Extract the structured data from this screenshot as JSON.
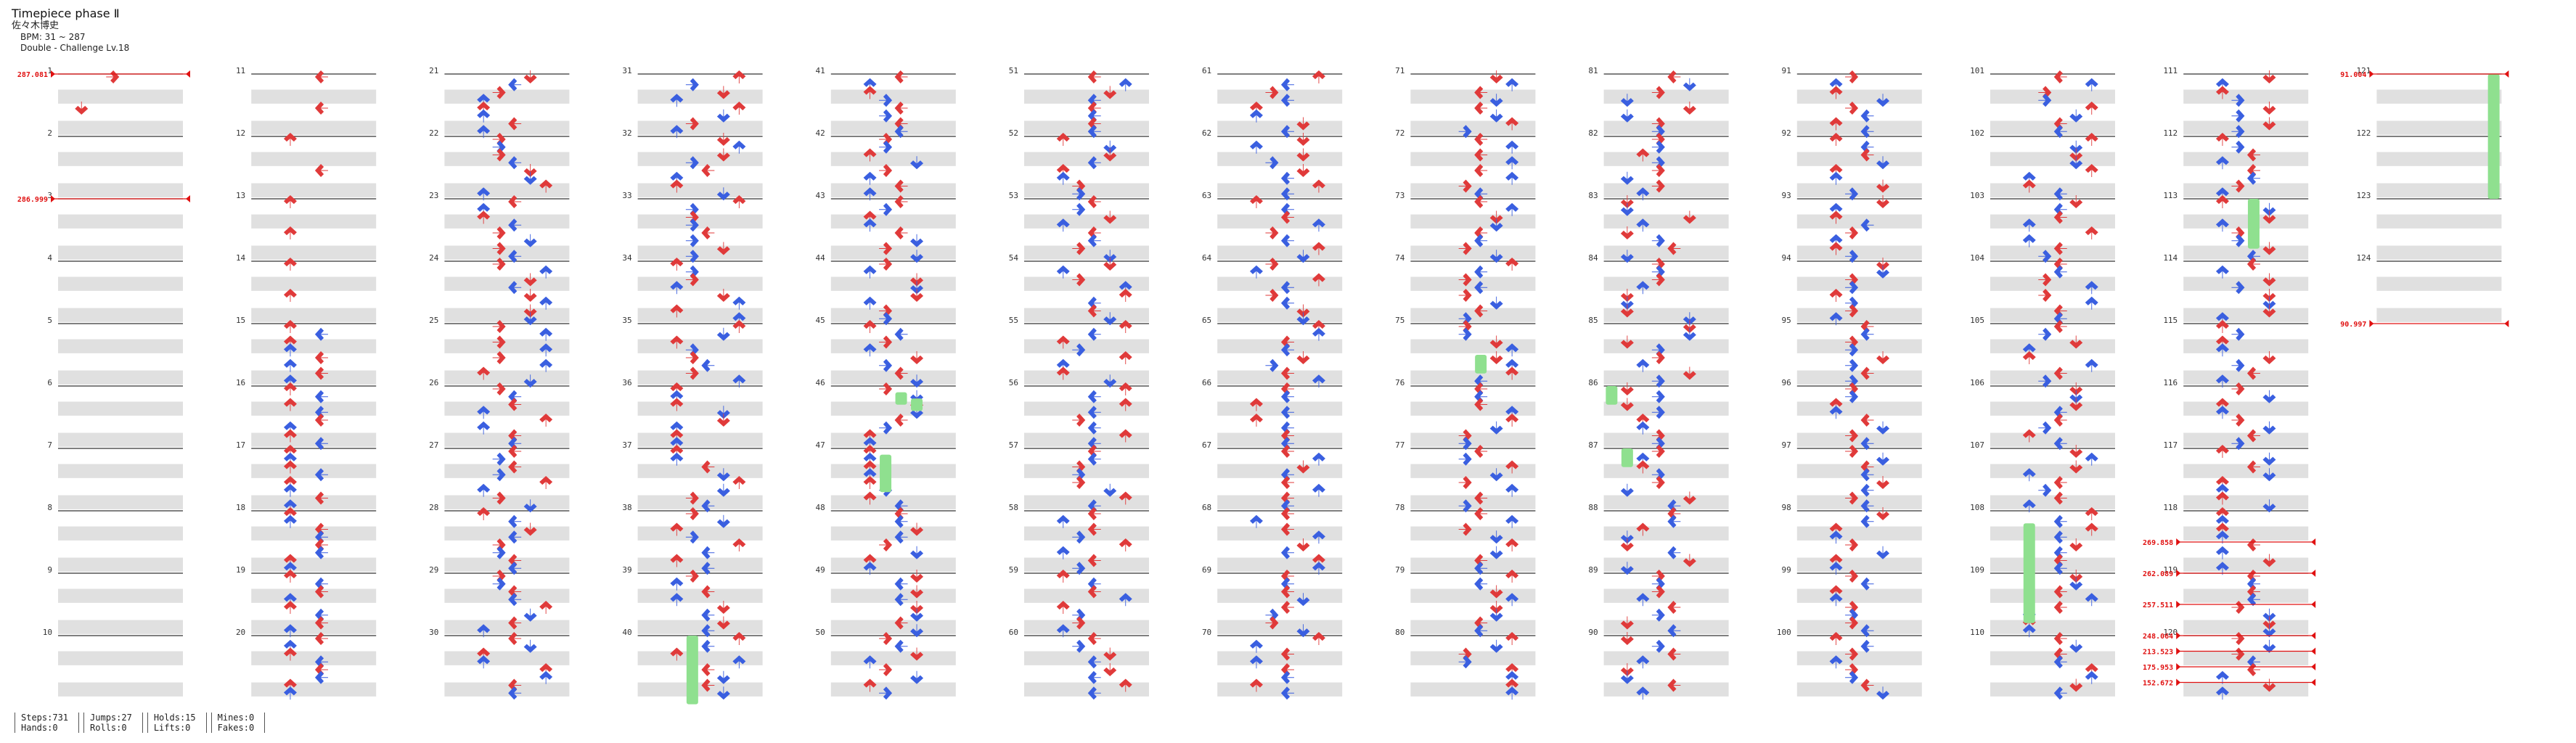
{
  "song": {
    "title": "Timepiece phase Ⅱ",
    "artist": "佐々木博史",
    "bpm": "BPM: 31 ~ 287",
    "difficulty": "Double - Challenge Lv.18"
  },
  "colors": {
    "quarter": "#e03a3a",
    "eighth": "#3a5fe0",
    "sixteenth": "#c040e0",
    "hold": "#8fe08f",
    "bpm_marker": "#e01010",
    "stripe": "#e0e0e0",
    "measure_line": "#333333"
  },
  "chart_data": {
    "type": "step-chart",
    "mode": "Double",
    "lanes": 8,
    "measures_per_column": 10,
    "total_measures": 124,
    "columns": [
      {
        "start": 1
      },
      {
        "start": 11
      },
      {
        "start": 21
      },
      {
        "start": 31
      },
      {
        "start": 41
      },
      {
        "start": 51
      },
      {
        "start": 61
      },
      {
        "start": 71
      },
      {
        "start": 81
      },
      {
        "start": 91
      },
      {
        "start": 101
      },
      {
        "start": 111
      },
      {
        "start": 121
      }
    ],
    "bpm_changes": [
      {
        "label": "287.081",
        "measure": 1
      },
      {
        "label": "286.999",
        "measure": 3
      },
      {
        "label": "269.858",
        "measure": 118.5
      },
      {
        "label": "262.089",
        "measure": 119
      },
      {
        "label": "257.511",
        "measure": 119.5
      },
      {
        "label": "248.064",
        "measure": 120
      },
      {
        "label": "213.523",
        "measure": 120.25
      },
      {
        "label": "175.953",
        "measure": 120.5
      },
      {
        "label": "152.672",
        "measure": 120.75
      },
      {
        "label": "91.004",
        "measure": 121
      },
      {
        "label": "90.997",
        "measure": 125
      }
    ]
  },
  "stats": {
    "steps": "Steps:731",
    "hands": "Hands:0",
    "jumps": "Jumps:27",
    "rolls": "Rolls:0",
    "holds": "Holds:15",
    "lifts": "Lifts:0",
    "mines": "Mines:0",
    "fakes": "Fakes:0"
  }
}
